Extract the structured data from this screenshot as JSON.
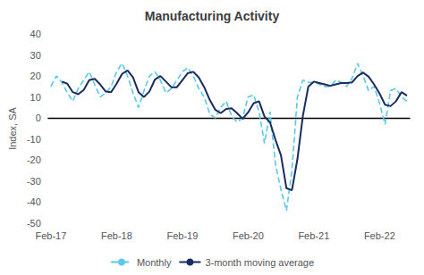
{
  "chart_data": {
    "type": "line",
    "title": "Manufacturing Activity",
    "y_label": "Index, SA",
    "categories": [
      "Feb-17",
      null,
      null,
      null,
      null,
      null,
      null,
      null,
      null,
      null,
      null,
      null,
      "Feb-18",
      null,
      null,
      null,
      null,
      null,
      null,
      null,
      null,
      null,
      null,
      null,
      "Feb-19",
      null,
      null,
      null,
      null,
      null,
      null,
      null,
      null,
      null,
      null,
      null,
      "Feb-20",
      null,
      null,
      null,
      null,
      null,
      null,
      null,
      null,
      null,
      null,
      null,
      "Feb-21",
      null,
      null,
      null,
      null,
      null,
      null,
      null,
      null,
      null,
      null,
      null,
      "Feb-22",
      null,
      null,
      null,
      null,
      null
    ],
    "series": [
      {
        "name": "Monthly",
        "color": "#5bc8e8",
        "line_style": "dashed",
        "values": [
          15,
          20,
          17,
          12,
          8,
          14,
          18,
          22,
          16,
          10,
          12,
          15,
          22,
          26,
          20,
          12,
          5,
          13,
          20,
          22,
          18,
          12,
          14,
          18,
          22,
          24,
          20,
          14,
          10,
          2,
          0,
          5,
          8,
          1,
          -2,
          0,
          10,
          11,
          3,
          -12,
          3,
          -22,
          -34,
          -44,
          -25,
          10,
          18,
          17,
          17,
          16,
          15,
          15,
          18,
          17,
          15,
          19,
          26,
          20,
          13,
          15,
          7,
          -3,
          13,
          14,
          10,
          8
        ]
      },
      {
        "name": "3-month moving average",
        "color": "#1a2b5e",
        "line_style": "solid",
        "values": [
          null,
          null,
          17.333333333333332,
          16.333333333333332,
          12.333333333333332,
          11.333333333333332,
          13.333333333333332,
          18,
          18.666666666666668,
          16,
          12.666666666666668,
          12.333333333333332,
          16.333333333333332,
          21,
          22.666666666666668,
          19.333333333333332,
          12.333333333333332,
          10,
          12.666666666666668,
          18.333333333333332,
          20,
          17.333333333333332,
          14.666666666666668,
          14.666666666666668,
          18,
          21.333333333333332,
          22,
          19.333333333333332,
          14.666666666666668,
          8.666666666666668,
          4,
          2.3333333333333335,
          4.333333333333333,
          4.666666666666667,
          2.3333333333333335,
          -0.3333333333333333,
          2.6666666666666665,
          7,
          8,
          0.6666666666666667,
          -2,
          -10.333333333333332,
          -17.666666666666668,
          -33.333333333333336,
          -34.333333333333336,
          -19.666666666666668,
          1,
          15,
          17.333333333333332,
          16.666666666666668,
          16,
          15.333333333333332,
          16,
          16.666666666666668,
          16.666666666666668,
          17,
          20,
          21.666666666666668,
          19.666666666666668,
          16,
          11.666666666666668,
          6.333333333333333,
          5.666666666666667,
          8,
          12.333333333333332,
          10.666666666666668
        ]
      }
    ],
    "ylim": [
      -50,
      40
    ],
    "yticks": [
      -50,
      -40,
      -30,
      -20,
      -10,
      0,
      10,
      20,
      30,
      40
    ],
    "grid": false,
    "legend": "bottom"
  }
}
